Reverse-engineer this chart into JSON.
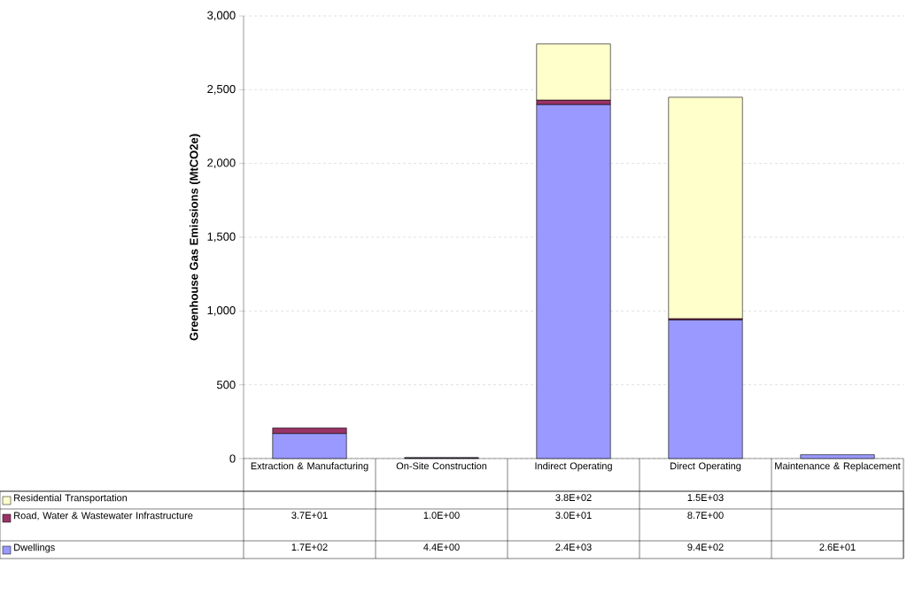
{
  "chart_data": {
    "type": "bar",
    "stacked": true,
    "ylabel": "Greenhouse Gas Emissions (MtCO2e)",
    "categories": [
      "Extraction & Manufacturing",
      "On-Site Construction",
      "Indirect Operating",
      "Direct Operating",
      "Maintenance & Replacement"
    ],
    "series": [
      {
        "name": "Dwellings",
        "color": "#9999ff",
        "values": [
          170,
          4.4,
          2400,
          940,
          26
        ],
        "value_labels": [
          "1.7E+02",
          "4.4E+00",
          "2.4E+03",
          "9.4E+02",
          "2.6E+01"
        ]
      },
      {
        "name": "Road, Water & Wastewater Infrastructure",
        "color": "#993366",
        "values": [
          37,
          1.0,
          30,
          8.7,
          null
        ],
        "value_labels": [
          "3.7E+01",
          "1.0E+00",
          "3.0E+01",
          "8.7E+00",
          null
        ]
      },
      {
        "name": "Residential Transportation",
        "color": "#ffffcc",
        "values": [
          null,
          null,
          380,
          1500,
          null
        ],
        "value_labels": [
          null,
          null,
          "3.8E+02",
          "1.5E+03",
          null
        ]
      }
    ],
    "ylim": [
      0,
      3000
    ],
    "yticks": [
      0,
      500,
      {
        "value": 1000,
        "label": "1,000"
      },
      {
        "value": 1500,
        "label": "1,500"
      },
      {
        "value": 2000,
        "label": "2,000"
      },
      {
        "value": 2500,
        "label": "2,500"
      },
      {
        "value": 3000,
        "label": "3,000"
      }
    ],
    "grid": "y",
    "legend": "bottom"
  }
}
